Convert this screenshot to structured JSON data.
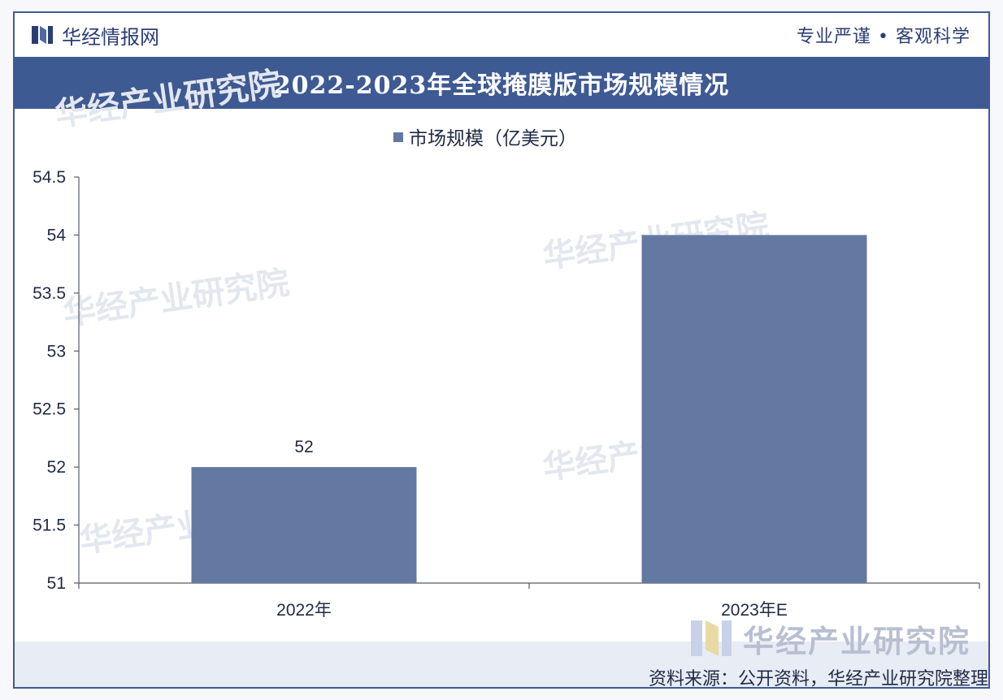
{
  "header": {
    "brand": "华经情报网",
    "slogan": "专业严谨 • 客观科学"
  },
  "footer": {
    "source": "资料来源：公开资料，华经产业研究院整理",
    "watermark_brand": "华经产业研究院"
  },
  "colors": {
    "bar": "#6479a2",
    "title_band": "#3e5a93",
    "axis": "#555a66"
  },
  "chart_data": {
    "type": "bar",
    "title": "2022-2023年全球掩膜版市场规模情况",
    "categories": [
      "2022年",
      "2023年E"
    ],
    "series": [
      {
        "name": "市场规模（亿美元）",
        "values": [
          52,
          54
        ]
      }
    ],
    "data_labels": [
      "52",
      ""
    ],
    "ylim": [
      51,
      54.5
    ],
    "yticks": [
      51,
      51.5,
      52,
      52.5,
      53,
      53.5,
      54,
      54.5
    ],
    "ytick_labels": [
      "51",
      "51.5",
      "52",
      "52.5",
      "53",
      "53.5",
      "54",
      "54.5"
    ],
    "xlabel": "",
    "ylabel": "",
    "legend_position": "top-center",
    "grid": false
  }
}
